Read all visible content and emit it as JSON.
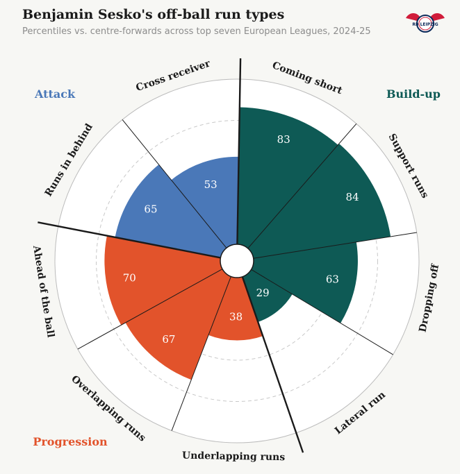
{
  "title": "Benjamin Sesko's off-ball run types",
  "subtitle": "Percentiles vs. centre-forwards across top seven European Leagues, 2024-25",
  "logo": {
    "text": "RB LEIPZIG",
    "icon": "rb-leipzig-bull-logo"
  },
  "colors": {
    "background": "#f7f7f4",
    "build_up": "#0e5a55",
    "attack": "#4a78b8",
    "progression": "#e2532b",
    "divider": "#1a1a1a",
    "grid": "#c8c8c8",
    "wedge_bg": "#ffffff"
  },
  "chart_data": {
    "type": "radial-bar",
    "title": "Benjamin Sesko's off-ball run types",
    "subtitle": "Percentiles vs. centre-forwards across top seven European Leagues, 2024-25",
    "scale": [
      0,
      100
    ],
    "groups": [
      {
        "name": "Build-up",
        "color": "#0e5a55"
      },
      {
        "name": "Attack",
        "color": "#4a78b8"
      },
      {
        "name": "Progression",
        "color": "#e2532b"
      }
    ],
    "categories": [
      {
        "label": "Coming short",
        "value": 83,
        "group": "Build-up"
      },
      {
        "label": "Support runs",
        "value": 84,
        "group": "Build-up"
      },
      {
        "label": "Dropping off",
        "value": 63,
        "group": "Build-up"
      },
      {
        "label": "Lateral run",
        "value": 29,
        "group": "Build-up"
      },
      {
        "label": "Underlapping runs",
        "value": 38,
        "group": "Progression"
      },
      {
        "label": "Overlapping runs",
        "value": 67,
        "group": "Progression"
      },
      {
        "label": "Ahead of the ball",
        "value": 70,
        "group": "Progression"
      },
      {
        "label": "Runs in behind",
        "value": 65,
        "group": "Attack"
      },
      {
        "label": "Cross receiver",
        "value": 53,
        "group": "Attack"
      }
    ]
  }
}
